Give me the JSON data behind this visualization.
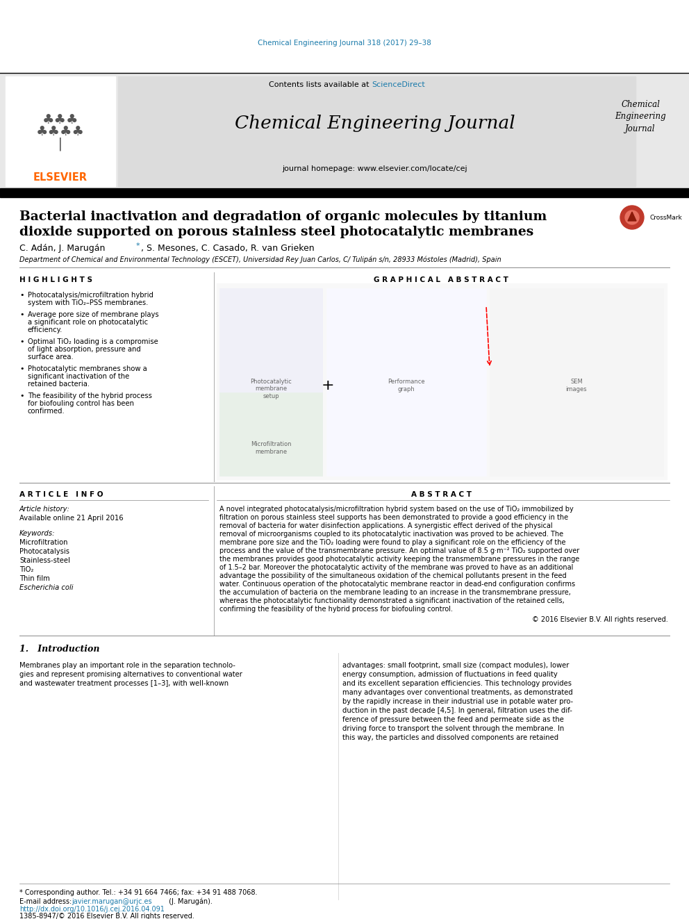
{
  "journal_citation": "Chemical Engineering Journal 318 (2017) 29–38",
  "journal_citation_color": "#1a7aaa",
  "sciencedirect_color": "#1a7aaa",
  "journal_name": "Chemical Engineering Journal",
  "journal_homepage": "journal homepage: www.elsevier.com/locate/cej",
  "journal_name_right": "Chemical\nEngineering\nJournal",
  "elsevier_color": "#ff6600",
  "header_bg": "#e8e8e8",
  "paper_title_line1": "Bacterial inactivation and degradation of organic molecules by titanium",
  "paper_title_line2": "dioxide supported on porous stainless steel photocatalytic membranes",
  "affiliation": "Department of Chemical and Environmental Technology (ESCET), Universidad Rey Juan Carlos, C/ Tulipán s/n, 28933 Móstoles (Madrid), Spain",
  "highlights_title": "H I G H L I G H T S",
  "highlights": [
    "Photocatalysis/microfiltration hybrid system with TiO₂–PSS membranes.",
    "Average pore size of membrane plays a significant role on photocatalytic efficiency.",
    "Optimal TiO₂ loading is a compromise of light absorption, pressure and surface area.",
    "Photocatalytic membranes show a significant inactivation of the retained bacteria.",
    "The feasibility of the hybrid process for biofouling control has been confirmed."
  ],
  "graphical_abstract_title": "G R A P H I C A L   A B S T R A C T",
  "article_info_title": "A R T I C L E   I N F O",
  "article_history_label": "Article history:",
  "article_history_value": "Available online 21 April 2016",
  "keywords_label": "Keywords:",
  "keywords": [
    "Microfiltration",
    "Photocatalysis",
    "Stainless-steel",
    "TiO₂",
    "Thin film",
    "Escherichia coli"
  ],
  "abstract_title": "A B S T R A C T",
  "abstract_lines": [
    "A novel integrated photocatalysis/microfiltration hybrid system based on the use of TiO₂ immobilized by",
    "filtration on porous stainless steel supports has been demonstrated to provide a good efficiency in the",
    "removal of bacteria for water disinfection applications. A synergistic effect derived of the physical",
    "removal of microorganisms coupled to its photocatalytic inactivation was proved to be achieved. The",
    "membrane pore size and the TiO₂ loading were found to play a significant role on the efficiency of the",
    "process and the value of the transmembrane pressure. An optimal value of 8.5 g·m⁻² TiO₂ supported over",
    "the membranes provides good photocatalytic activity keeping the transmembrane pressures in the range",
    "of 1.5–2 bar. Moreover the photocatalytic activity of the membrane was proved to have as an additional",
    "advantage the possibility of the simultaneous oxidation of the chemical pollutants present in the feed",
    "water. Continuous operation of the photocatalytic membrane reactor in dead-end configuration confirms",
    "the accumulation of bacteria on the membrane leading to an increase in the transmembrane pressure,",
    "whereas the photocatalytic functionality demonstrated a significant inactivation of the retained cells,",
    "confirming the feasibility of the hybrid process for biofouling control."
  ],
  "copyright_text": "© 2016 Elsevier B.V. All rights reserved.",
  "intro_title": "1.   Introduction",
  "intro_col1_lines": [
    "Membranes play an important role in the separation technolo-",
    "gies and represent promising alternatives to conventional water",
    "and wastewater treatment processes [1–3], with well-known"
  ],
  "intro_col2_lines": [
    "advantages: small footprint, small size (compact modules), lower",
    "energy consumption, admission of fluctuations in feed quality",
    "and its excellent separation efficiencies. This technology provides",
    "many advantages over conventional treatments, as demonstrated",
    "by the rapidly increase in their industrial use in potable water pro-",
    "duction in the past decade [4,5]. In general, filtration uses the dif-",
    "ference of pressure between the feed and permeate side as the",
    "driving force to transport the solvent through the membrane. In",
    "this way, the particles and dissolved components are retained"
  ],
  "footer_note": "* Corresponding author. Tel.: +34 91 664 7466; fax: +34 91 488 7068.",
  "footer_email_label": "E-mail address: ",
  "footer_email": "javier.marugan@urjc.es",
  "footer_email_suffix": " (J. Marugán).",
  "footer_doi": "http://dx.doi.org/10.1016/j.cej.2016.04.091",
  "footer_issn": "1385-8947/© 2016 Elsevier B.V. All rights reserved.",
  "doi_color": "#1a7aaa",
  "bg_color": "#ffffff",
  "text_color": "#000000"
}
